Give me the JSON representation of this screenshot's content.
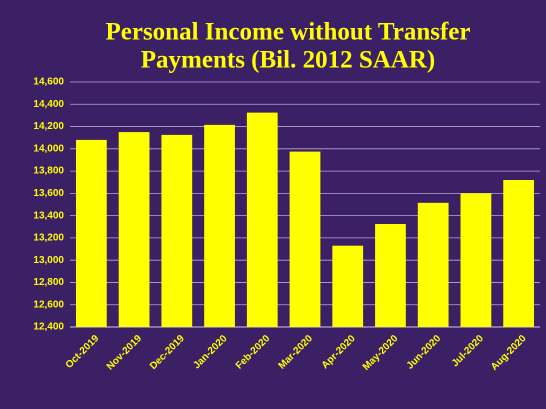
{
  "chart_data": {
    "type": "bar",
    "title": [
      "Personal Income without Transfer",
      "Payments (Bil. 2012 SAAR)"
    ],
    "categories": [
      "Oct-2019",
      "Nov-2019",
      "Dec-2019",
      "Jan-2020",
      "Feb-2020",
      "Mar-2020",
      "Apr-2020",
      "May-2020",
      "Jun-2020",
      "Jul-2020",
      "Aug-2020"
    ],
    "values": [
      14080,
      14150,
      14125,
      14215,
      14325,
      13975,
      13130,
      13325,
      13515,
      13600,
      13720
    ],
    "color": "#ffff00",
    "ylim": [
      12400,
      14600
    ],
    "yticks": [
      {
        "value": 12400,
        "label": "12,400"
      },
      {
        "value": 12600,
        "label": "12,600"
      },
      {
        "value": 12800,
        "label": "12,800"
      },
      {
        "value": 13000,
        "label": "13,000"
      },
      {
        "value": 13200,
        "label": "13,200"
      },
      {
        "value": 13400,
        "label": "13,400"
      },
      {
        "value": 13600,
        "label": "13,600"
      },
      {
        "value": 13800,
        "label": "13,800"
      },
      {
        "value": 14000,
        "label": "14,000"
      },
      {
        "value": 14200,
        "label": "14,200"
      },
      {
        "value": 14400,
        "label": "14,400"
      },
      {
        "value": 14600,
        "label": "14,600"
      }
    ],
    "grid": true
  }
}
